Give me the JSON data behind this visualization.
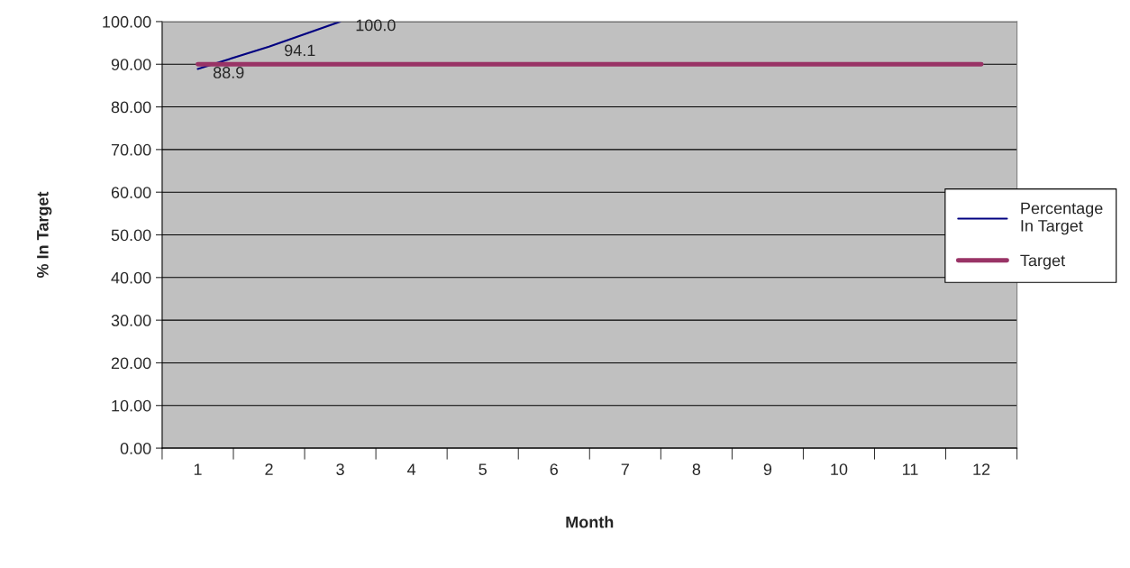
{
  "chart_data": {
    "type": "line",
    "xlabel": "Month",
    "ylabel": "% In Target",
    "categories": [
      "1",
      "2",
      "3",
      "4",
      "5",
      "6",
      "7",
      "8",
      "9",
      "10",
      "11",
      "12"
    ],
    "series": [
      {
        "name": "Percentage In Target",
        "color": "#000080",
        "values": [
          88.9,
          94.1,
          100.0,
          null,
          null,
          null,
          null,
          null,
          null,
          null,
          null,
          null
        ],
        "value_labels": [
          "88.9",
          "94.1",
          "100.0",
          null,
          null,
          null,
          null,
          null,
          null,
          null,
          null,
          null
        ]
      },
      {
        "name": "Target",
        "color": "#993366",
        "values": [
          90,
          90,
          90,
          90,
          90,
          90,
          90,
          90,
          90,
          90,
          90,
          90
        ]
      }
    ],
    "ylim": [
      0,
      100
    ],
    "yticks": [
      {
        "value": 0,
        "label": "0.00"
      },
      {
        "value": 10,
        "label": "10.00"
      },
      {
        "value": 20,
        "label": "20.00"
      },
      {
        "value": 30,
        "label": "30.00"
      },
      {
        "value": 40,
        "label": "40.00"
      },
      {
        "value": 50,
        "label": "50.00"
      },
      {
        "value": 60,
        "label": "60.00"
      },
      {
        "value": 70,
        "label": "70.00"
      },
      {
        "value": 80,
        "label": "80.00"
      },
      {
        "value": 90,
        "label": "90.00"
      },
      {
        "value": 100,
        "label": "100.00"
      }
    ],
    "grid": "y",
    "legend": "right",
    "marker": "none",
    "line_style": "solid"
  }
}
